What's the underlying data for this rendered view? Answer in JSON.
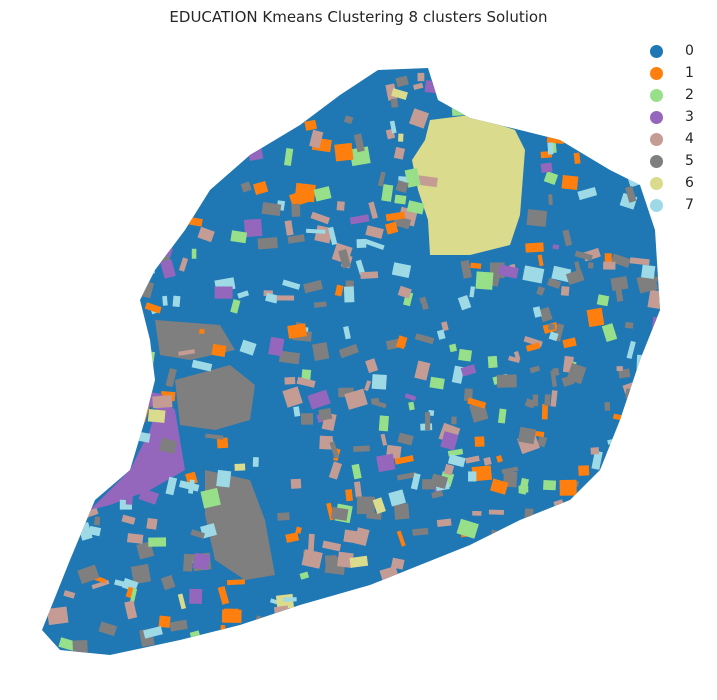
{
  "title": "EDUCATION Kmeans Clustering 8 clusters Solution",
  "legend": [
    {
      "label": "0",
      "color": "#1f77b4"
    },
    {
      "label": "1",
      "color": "#ff7f0e"
    },
    {
      "label": "2",
      "color": "#98df8a"
    },
    {
      "label": "3",
      "color": "#9467bd"
    },
    {
      "label": "4",
      "color": "#c49c94"
    },
    {
      "label": "5",
      "color": "#7f7f7f"
    },
    {
      "label": "6",
      "color": "#dbdb8d"
    },
    {
      "label": "7",
      "color": "#9edae5"
    }
  ]
}
